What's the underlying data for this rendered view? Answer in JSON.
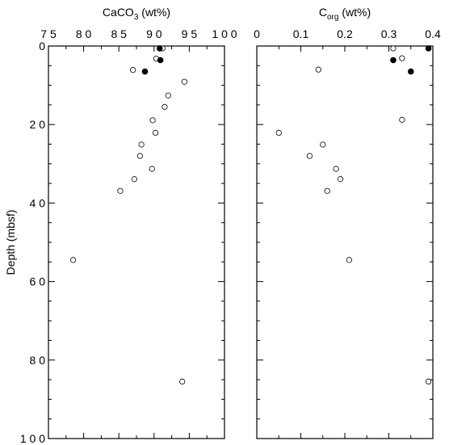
{
  "chart_data": {
    "type": "scatter",
    "ylabel": "Depth (mbsf)",
    "ylim": [
      0,
      100
    ],
    "y_inverted": true,
    "y_ticks": [
      0,
      20,
      40,
      60,
      80,
      100
    ],
    "panels": [
      {
        "id": "caco3",
        "title_main": "CaCO",
        "title_sub": "3",
        "title_rest": " (wt%)",
        "xlim": [
          75,
          100
        ],
        "x_ticks": [
          75,
          80,
          85,
          90,
          95,
          100
        ],
        "x_tick_labels": [
          "7 5",
          "8 0",
          "8 5",
          "9 0",
          "9 5",
          "1 0 0"
        ],
        "open": [
          {
            "x": 91.2,
            "y": 0.6
          },
          {
            "x": 90.3,
            "y": 3.2
          },
          {
            "x": 87.0,
            "y": 6.1
          },
          {
            "x": 94.3,
            "y": 9.1
          },
          {
            "x": 92.0,
            "y": 12.6
          },
          {
            "x": 91.5,
            "y": 15.5
          },
          {
            "x": 89.8,
            "y": 18.9
          },
          {
            "x": 90.2,
            "y": 22.1
          },
          {
            "x": 88.2,
            "y": 25.1
          },
          {
            "x": 88.0,
            "y": 28.0
          },
          {
            "x": 89.7,
            "y": 31.3
          },
          {
            "x": 87.2,
            "y": 33.9
          },
          {
            "x": 85.2,
            "y": 36.9
          },
          {
            "x": 78.5,
            "y": 54.5
          },
          {
            "x": 94.0,
            "y": 85.5
          }
        ],
        "filled": [
          {
            "x": 90.8,
            "y": 0.6
          },
          {
            "x": 90.9,
            "y": 3.6
          },
          {
            "x": 88.7,
            "y": 6.5
          }
        ]
      },
      {
        "id": "corg",
        "title_main": "C",
        "title_sub": "org",
        "title_rest": " (wt%)",
        "xlim": [
          0,
          0.4
        ],
        "x_ticks": [
          0,
          0.1,
          0.2,
          0.3,
          0.4
        ],
        "x_tick_labels": [
          "0",
          "0.1",
          "0.2",
          "0.3",
          "0.4"
        ],
        "open": [
          {
            "x": 0.31,
            "y": 0.6
          },
          {
            "x": 0.33,
            "y": 3.1
          },
          {
            "x": 0.14,
            "y": 6.0
          },
          {
            "x": 0.33,
            "y": 18.8
          },
          {
            "x": 0.05,
            "y": 22.1
          },
          {
            "x": 0.15,
            "y": 25.1
          },
          {
            "x": 0.12,
            "y": 28.0
          },
          {
            "x": 0.18,
            "y": 31.3
          },
          {
            "x": 0.19,
            "y": 33.9
          },
          {
            "x": 0.16,
            "y": 36.9
          },
          {
            "x": 0.21,
            "y": 54.5
          },
          {
            "x": 0.39,
            "y": 85.5
          }
        ],
        "filled": [
          {
            "x": 0.39,
            "y": 0.6
          },
          {
            "x": 0.31,
            "y": 3.6
          },
          {
            "x": 0.35,
            "y": 6.5
          }
        ]
      }
    ]
  }
}
